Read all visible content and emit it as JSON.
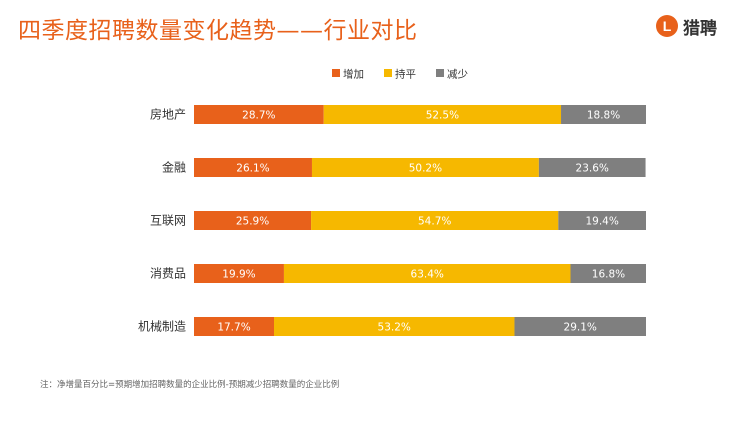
{
  "header": {
    "title": "四季度招聘数量变化趋势——行业对比",
    "logo_mark": "L",
    "logo_text": "猎聘"
  },
  "colors": {
    "increase": "#e8611b",
    "flat": "#f6b800",
    "decrease": "#7f7f7f",
    "title": "#e8611b"
  },
  "chart_data": {
    "type": "bar",
    "orientation": "horizontal",
    "stacked": true,
    "title": "四季度招聘数量变化趋势——行业对比",
    "categories": [
      "房地产",
      "金融",
      "互联网",
      "消费品",
      "机械制造"
    ],
    "series": [
      {
        "name": "增加",
        "values": [
          28.7,
          26.1,
          25.9,
          19.9,
          17.7
        ],
        "labels": [
          "28.7%",
          "26.1%",
          "25.9%",
          "19.9%",
          "17.7%"
        ]
      },
      {
        "name": "持平",
        "values": [
          52.5,
          50.2,
          54.7,
          63.4,
          53.2
        ],
        "labels": [
          "52.5%",
          "50.2%",
          "54.7%",
          "63.4%",
          "53.2%"
        ]
      },
      {
        "name": "减少",
        "values": [
          18.8,
          23.6,
          19.4,
          16.8,
          29.1
        ],
        "labels": [
          "18.8%",
          "23.6%",
          "19.4%",
          "16.8%",
          "29.1%"
        ]
      }
    ],
    "legend": {
      "position": "top"
    },
    "xlabel": "",
    "ylabel": "",
    "xlim": [
      0,
      100
    ]
  },
  "footnote": "注：净增量百分比=预期增加招聘数量的企业比例-预期减少招聘数量的企业比例"
}
